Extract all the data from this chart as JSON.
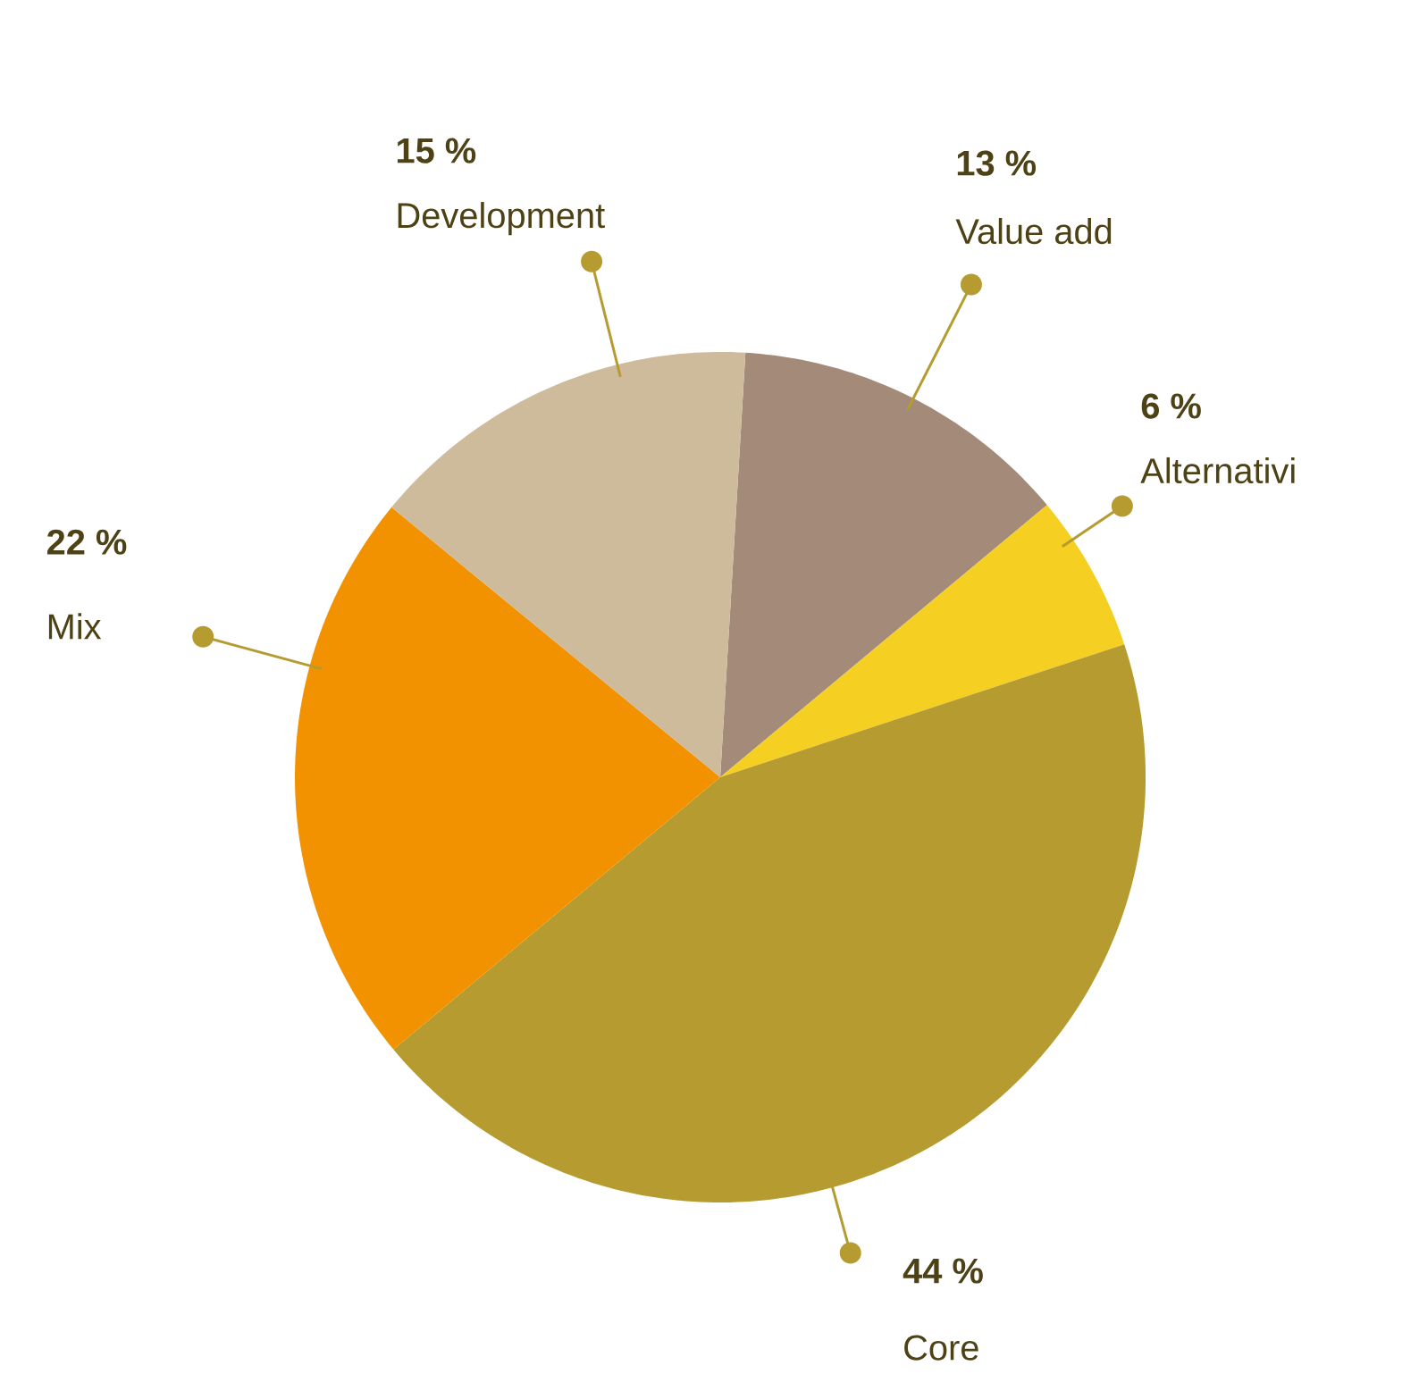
{
  "chart_data": {
    "type": "pie",
    "categories": [
      "Value add",
      "Alternativi",
      "Core",
      "Mix",
      "Development"
    ],
    "values": [
      13,
      6,
      44,
      22,
      15
    ],
    "value_labels": [
      "13 %",
      "6 %",
      "44 %",
      "22 %",
      "15 %"
    ],
    "colors": [
      "#a48a78",
      "#f5cf22",
      "#b59b30",
      "#f39200",
      "#cdbb9c"
    ]
  }
}
